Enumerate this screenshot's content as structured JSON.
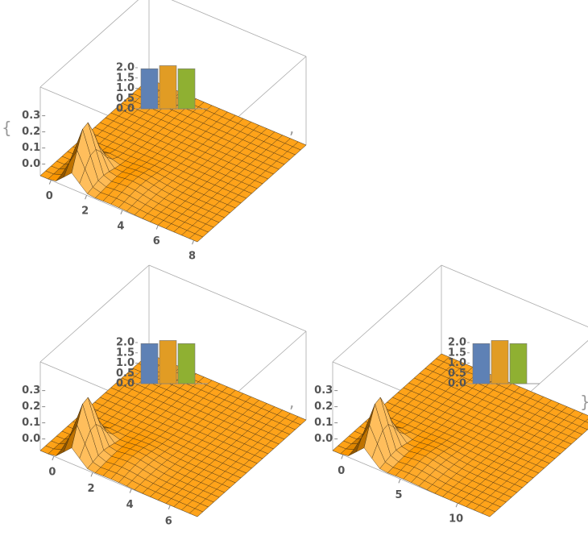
{
  "open_brace": "{",
  "separator": ",",
  "close_brace": "}",
  "chart_data": [
    {
      "type": "surface3d",
      "xlim": [
        -0.6,
        8.2
      ],
      "xticks": [
        0,
        2,
        4,
        6,
        8
      ],
      "zlim": [
        0,
        0.35
      ],
      "zticks": [
        {
          "value": 0,
          "label": "0.0"
        },
        {
          "value": 0.1,
          "label": "0.1"
        },
        {
          "value": 0.2,
          "label": "0.2"
        },
        {
          "value": 0.3,
          "label": "0.3"
        }
      ],
      "inset": {
        "type": "bar",
        "values": [
          1.95,
          2.1,
          1.95
        ],
        "colors": [
          "#5e81b5",
          "#e19c24",
          "#8fb032"
        ],
        "ylim": [
          0,
          2.2
        ],
        "yticks": [
          {
            "value": 0,
            "label": "0.0"
          },
          {
            "value": 0.5,
            "label": "0.5"
          },
          {
            "value": 1,
            "label": "1.0"
          },
          {
            "value": 1.5,
            "label": "1.5"
          },
          {
            "value": 2,
            "label": "2.0"
          }
        ]
      }
    },
    {
      "type": "surface3d",
      "xlim": [
        -0.7,
        7.4
      ],
      "xticks": [
        0,
        2,
        4,
        6
      ],
      "zlim": [
        0,
        0.35
      ],
      "zticks": [
        {
          "value": 0,
          "label": "0.0"
        },
        {
          "value": 0.1,
          "label": "0.1"
        },
        {
          "value": 0.2,
          "label": "0.2"
        },
        {
          "value": 0.3,
          "label": "0.3"
        }
      ],
      "inset": {
        "type": "bar",
        "values": [
          1.95,
          2.1,
          1.95
        ],
        "colors": [
          "#5e81b5",
          "#e19c24",
          "#8fb032"
        ],
        "ylim": [
          0,
          2.2
        ],
        "yticks": [
          {
            "value": 0,
            "label": "0.0"
          },
          {
            "value": 0.5,
            "label": "0.5"
          },
          {
            "value": 1,
            "label": "1.0"
          },
          {
            "value": 1.5,
            "label": "1.5"
          },
          {
            "value": 2,
            "label": "2.0"
          }
        ]
      }
    },
    {
      "type": "surface3d",
      "xlim": [
        -0.9,
        12.8
      ],
      "xticks": [
        0,
        5,
        10
      ],
      "zlim": [
        0,
        0.35
      ],
      "zticks": [
        {
          "value": 0,
          "label": "0.0"
        },
        {
          "value": 0.1,
          "label": "0.1"
        },
        {
          "value": 0.2,
          "label": "0.2"
        },
        {
          "value": 0.3,
          "label": "0.3"
        }
      ],
      "inset": {
        "type": "bar",
        "values": [
          1.95,
          2.1,
          1.95
        ],
        "colors": [
          "#5e81b5",
          "#e19c24",
          "#8fb032"
        ],
        "ylim": [
          0,
          2.2
        ],
        "yticks": [
          {
            "value": 0,
            "label": "0.0"
          },
          {
            "value": 0.5,
            "label": "0.5"
          },
          {
            "value": 1,
            "label": "1.0"
          },
          {
            "value": 1.5,
            "label": "1.5"
          },
          {
            "value": 2,
            "label": "2.0"
          }
        ]
      }
    }
  ]
}
